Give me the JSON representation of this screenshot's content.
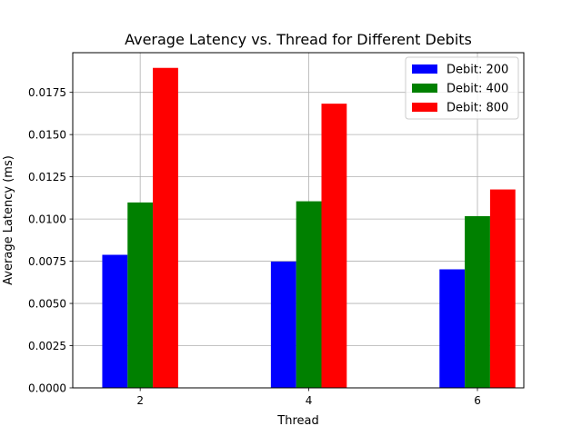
{
  "chart_data": {
    "type": "bar",
    "title": "Average Latency vs. Thread for Different Debits",
    "xlabel": "Thread",
    "ylabel": "Average Latency (ms)",
    "categories": [
      "2",
      "4",
      "6"
    ],
    "x": [
      2,
      4,
      6
    ],
    "xlim": [
      1.2,
      6.55
    ],
    "ylim": [
      0,
      0.01985
    ],
    "yticks": [
      "0.0000",
      "0.0025",
      "0.0050",
      "0.0075",
      "0.0100",
      "0.0125",
      "0.0150",
      "0.0175"
    ],
    "ytick_values": [
      0,
      0.0025,
      0.005,
      0.0075,
      0.01,
      0.0125,
      0.015,
      0.0175
    ],
    "grid": true,
    "legend_position": "top-right",
    "series": [
      {
        "name": "Debit: 200",
        "color": "#0000ff",
        "values": [
          0.00788,
          0.00748,
          0.00702
        ]
      },
      {
        "name": "Debit: 400",
        "color": "#008000",
        "values": [
          0.01098,
          0.01105,
          0.01017
        ]
      },
      {
        "name": "Debit: 800",
        "color": "#ff0000",
        "values": [
          0.01895,
          0.01683,
          0.01175
        ]
      }
    ]
  }
}
